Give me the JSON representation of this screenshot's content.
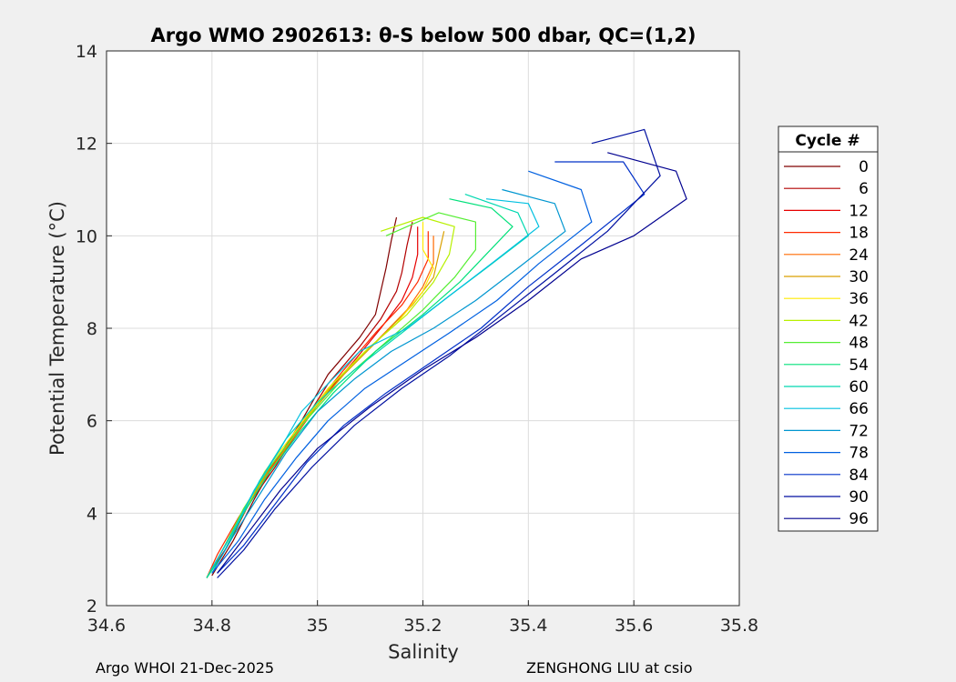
{
  "chart_data": {
    "type": "line",
    "title": "Argo WMO 2902613: θ-S below 500 dbar,  QC=(1,2)",
    "xlabel": "Salinity",
    "ylabel": "Potential Temperature (°C)",
    "xlim": [
      34.6,
      35.8
    ],
    "ylim": [
      2,
      14
    ],
    "xticks": [
      34.6,
      34.8,
      35,
      35.2,
      35.4,
      35.6,
      35.8
    ],
    "xtick_labels": [
      "34.6",
      "34.8",
      "35",
      "35.2",
      "35.4",
      "35.6",
      "35.8"
    ],
    "yticks": [
      2,
      4,
      6,
      8,
      10,
      12,
      14
    ],
    "ytick_labels": [
      "2",
      "4",
      "6",
      "8",
      "10",
      "12",
      "14"
    ],
    "grid": true,
    "legend": {
      "title": "Cycle #",
      "placement": "right-outside",
      "entries": [
        {
          "label": "0",
          "color": "#800000"
        },
        {
          "label": "6",
          "color": "#b30000"
        },
        {
          "label": "12",
          "color": "#e60000"
        },
        {
          "label": "18",
          "color": "#ff2a00"
        },
        {
          "label": "24",
          "color": "#ff6a00"
        },
        {
          "label": "30",
          "color": "#d9a000"
        },
        {
          "label": "36",
          "color": "#ffea00"
        },
        {
          "label": "42",
          "color": "#b8f000"
        },
        {
          "label": "48",
          "color": "#55ee33"
        },
        {
          "label": "54",
          "color": "#00e07a"
        },
        {
          "label": "60",
          "color": "#00d8b0"
        },
        {
          "label": "66",
          "color": "#00c0e0"
        },
        {
          "label": "72",
          "color": "#0096d0"
        },
        {
          "label": "78",
          "color": "#0060e0"
        },
        {
          "label": "84",
          "color": "#0030c8"
        },
        {
          "label": "90",
          "color": "#000fa0"
        },
        {
          "label": "96",
          "color": "#00008f"
        }
      ]
    },
    "series": [
      {
        "cycle": 0,
        "color": "#800000",
        "points": [
          [
            35.15,
            10.4
          ],
          [
            35.14,
            9.9
          ],
          [
            35.13,
            9.3
          ],
          [
            35.12,
            8.8
          ],
          [
            35.11,
            8.3
          ],
          [
            35.08,
            7.8
          ],
          [
            35.02,
            7.0
          ],
          [
            34.97,
            6.0
          ],
          [
            34.92,
            5.1
          ],
          [
            34.88,
            4.3
          ],
          [
            34.84,
            3.4
          ],
          [
            34.8,
            2.65
          ]
        ]
      },
      {
        "cycle": 6,
        "color": "#b30000",
        "points": [
          [
            35.18,
            10.3
          ],
          [
            35.17,
            9.8
          ],
          [
            35.16,
            9.2
          ],
          [
            35.15,
            8.8
          ],
          [
            35.12,
            8.2
          ],
          [
            35.08,
            7.6
          ],
          [
            35.02,
            6.8
          ],
          [
            34.97,
            5.9
          ],
          [
            34.92,
            5.0
          ],
          [
            34.87,
            4.2
          ],
          [
            34.83,
            3.3
          ],
          [
            34.79,
            2.6
          ]
        ]
      },
      {
        "cycle": 12,
        "color": "#e60000",
        "points": [
          [
            35.19,
            10.2
          ],
          [
            35.19,
            9.6
          ],
          [
            35.18,
            9.1
          ],
          [
            35.16,
            8.6
          ],
          [
            35.12,
            8.0
          ],
          [
            35.07,
            7.3
          ],
          [
            35.01,
            6.5
          ],
          [
            34.96,
            5.7
          ],
          [
            34.91,
            4.9
          ],
          [
            34.86,
            4.0
          ],
          [
            34.82,
            3.2
          ],
          [
            34.79,
            2.6
          ]
        ]
      },
      {
        "cycle": 18,
        "color": "#ff2a00",
        "points": [
          [
            35.21,
            10.1
          ],
          [
            35.21,
            9.5
          ],
          [
            35.19,
            9.0
          ],
          [
            35.16,
            8.5
          ],
          [
            35.11,
            7.9
          ],
          [
            35.05,
            7.1
          ],
          [
            35.0,
            6.4
          ],
          [
            34.95,
            5.6
          ],
          [
            34.9,
            4.8
          ],
          [
            34.85,
            3.9
          ],
          [
            34.81,
            3.1
          ],
          [
            34.79,
            2.6
          ]
        ]
      },
      {
        "cycle": 24,
        "color": "#ff6a00",
        "points": [
          [
            35.22,
            10.0
          ],
          [
            35.22,
            9.4
          ],
          [
            35.2,
            8.9
          ],
          [
            35.17,
            8.4
          ],
          [
            35.11,
            7.7
          ],
          [
            35.05,
            7.0
          ],
          [
            34.99,
            6.2
          ],
          [
            34.94,
            5.4
          ],
          [
            34.89,
            4.6
          ],
          [
            34.85,
            3.8
          ],
          [
            34.81,
            3.0
          ],
          [
            34.79,
            2.6
          ]
        ]
      },
      {
        "cycle": 30,
        "color": "#d9a000",
        "points": [
          [
            35.24,
            10.1
          ],
          [
            35.23,
            9.6
          ],
          [
            35.22,
            9.1
          ],
          [
            35.18,
            8.5
          ],
          [
            35.12,
            7.8
          ],
          [
            35.05,
            7.0
          ],
          [
            34.99,
            6.2
          ],
          [
            34.94,
            5.4
          ],
          [
            34.89,
            4.6
          ],
          [
            34.85,
            3.8
          ],
          [
            34.81,
            3.0
          ],
          [
            34.79,
            2.6
          ]
        ]
      },
      {
        "cycle": 36,
        "color": "#ffea00",
        "points": [
          [
            35.2,
            10.3
          ],
          [
            35.2,
            9.7
          ],
          [
            35.22,
            9.3
          ],
          [
            35.2,
            8.8
          ],
          [
            35.15,
            8.1
          ],
          [
            35.09,
            7.5
          ],
          [
            35.02,
            6.7
          ],
          [
            34.96,
            5.8
          ],
          [
            34.9,
            4.9
          ],
          [
            34.86,
            4.0
          ],
          [
            34.82,
            3.2
          ],
          [
            34.79,
            2.6
          ]
        ]
      },
      {
        "cycle": 42,
        "color": "#b8f000",
        "points": [
          [
            35.12,
            10.1
          ],
          [
            35.2,
            10.4
          ],
          [
            35.26,
            10.2
          ],
          [
            35.25,
            9.6
          ],
          [
            35.22,
            9.0
          ],
          [
            35.17,
            8.3
          ],
          [
            35.1,
            7.6
          ],
          [
            35.03,
            6.8
          ],
          [
            34.97,
            5.9
          ],
          [
            34.91,
            5.0
          ],
          [
            34.86,
            4.1
          ],
          [
            34.82,
            3.2
          ],
          [
            34.79,
            2.6
          ]
        ]
      },
      {
        "cycle": 48,
        "color": "#55ee33",
        "points": [
          [
            35.13,
            10.0
          ],
          [
            35.23,
            10.5
          ],
          [
            35.3,
            10.3
          ],
          [
            35.3,
            9.7
          ],
          [
            35.26,
            9.1
          ],
          [
            35.2,
            8.4
          ],
          [
            35.12,
            7.6
          ],
          [
            35.04,
            6.8
          ],
          [
            34.97,
            5.9
          ],
          [
            34.91,
            5.0
          ],
          [
            34.86,
            4.1
          ],
          [
            34.82,
            3.2
          ],
          [
            34.79,
            2.6
          ]
        ]
      },
      {
        "cycle": 54,
        "color": "#00e07a",
        "points": [
          [
            35.25,
            10.8
          ],
          [
            35.33,
            10.6
          ],
          [
            35.37,
            10.2
          ],
          [
            35.32,
            9.6
          ],
          [
            35.27,
            9.0
          ],
          [
            35.2,
            8.3
          ],
          [
            35.11,
            7.5
          ],
          [
            35.03,
            6.6
          ],
          [
            34.97,
            5.8
          ],
          [
            34.91,
            4.9
          ],
          [
            34.86,
            4.0
          ],
          [
            34.82,
            3.1
          ],
          [
            34.79,
            2.6
          ]
        ]
      },
      {
        "cycle": 60,
        "color": "#00d8b0",
        "points": [
          [
            35.28,
            10.9
          ],
          [
            35.38,
            10.5
          ],
          [
            35.4,
            10.0
          ],
          [
            35.32,
            9.3
          ],
          [
            35.25,
            8.7
          ],
          [
            35.16,
            7.9
          ],
          [
            35.07,
            7.1
          ],
          [
            35.0,
            6.4
          ],
          [
            34.94,
            5.6
          ],
          [
            34.89,
            4.7
          ],
          [
            34.85,
            3.8
          ],
          [
            34.81,
            3.0
          ],
          [
            34.79,
            2.6
          ]
        ]
      },
      {
        "cycle": 66,
        "color": "#00c0e0",
        "points": [
          [
            35.32,
            10.8
          ],
          [
            35.4,
            10.7
          ],
          [
            35.42,
            10.2
          ],
          [
            35.33,
            9.4
          ],
          [
            35.25,
            8.7
          ],
          [
            35.17,
            8.0
          ],
          [
            35.08,
            7.5
          ],
          [
            35.02,
            6.8
          ],
          [
            34.97,
            6.2
          ],
          [
            34.93,
            5.4
          ],
          [
            34.88,
            4.5
          ],
          [
            34.84,
            3.6
          ],
          [
            34.8,
            2.8
          ]
        ]
      },
      {
        "cycle": 72,
        "color": "#0096d0",
        "points": [
          [
            35.35,
            11.0
          ],
          [
            35.45,
            10.7
          ],
          [
            35.47,
            10.1
          ],
          [
            35.38,
            9.3
          ],
          [
            35.3,
            8.6
          ],
          [
            35.22,
            8.0
          ],
          [
            35.14,
            7.5
          ],
          [
            35.07,
            6.9
          ],
          [
            35.0,
            6.2
          ],
          [
            34.94,
            5.3
          ],
          [
            34.89,
            4.4
          ],
          [
            34.84,
            3.5
          ],
          [
            34.8,
            2.7
          ]
        ]
      },
      {
        "cycle": 78,
        "color": "#0060e0",
        "points": [
          [
            35.4,
            11.4
          ],
          [
            35.5,
            11.0
          ],
          [
            35.52,
            10.3
          ],
          [
            35.42,
            9.4
          ],
          [
            35.34,
            8.6
          ],
          [
            35.25,
            7.9
          ],
          [
            35.17,
            7.3
          ],
          [
            35.09,
            6.7
          ],
          [
            35.02,
            6.0
          ],
          [
            34.96,
            5.2
          ],
          [
            34.9,
            4.3
          ],
          [
            34.85,
            3.4
          ],
          [
            34.8,
            2.7
          ]
        ]
      },
      {
        "cycle": 84,
        "color": "#0030c8",
        "points": [
          [
            35.45,
            11.6
          ],
          [
            35.58,
            11.6
          ],
          [
            35.62,
            10.9
          ],
          [
            35.5,
            9.8
          ],
          [
            35.4,
            8.9
          ],
          [
            35.31,
            8.0
          ],
          [
            35.22,
            7.3
          ],
          [
            35.13,
            6.6
          ],
          [
            35.05,
            5.9
          ],
          [
            34.98,
            5.1
          ],
          [
            34.92,
            4.2
          ],
          [
            34.86,
            3.3
          ],
          [
            34.81,
            2.7
          ]
        ]
      },
      {
        "cycle": 90,
        "color": "#000fa0",
        "points": [
          [
            35.52,
            12.0
          ],
          [
            35.62,
            12.3
          ],
          [
            35.65,
            11.3
          ],
          [
            35.55,
            10.1
          ],
          [
            35.44,
            9.1
          ],
          [
            35.34,
            8.2
          ],
          [
            35.25,
            7.4
          ],
          [
            35.16,
            6.7
          ],
          [
            35.07,
            5.9
          ],
          [
            34.99,
            5.0
          ],
          [
            34.92,
            4.1
          ],
          [
            34.86,
            3.2
          ],
          [
            34.81,
            2.6
          ]
        ]
      },
      {
        "cycle": 96,
        "color": "#00008f",
        "points": [
          [
            35.55,
            11.8
          ],
          [
            35.68,
            11.4
          ],
          [
            35.7,
            10.8
          ],
          [
            35.6,
            10.0
          ],
          [
            35.5,
            9.5
          ],
          [
            35.4,
            8.6
          ],
          [
            35.3,
            7.8
          ],
          [
            35.2,
            7.1
          ],
          [
            35.1,
            6.3
          ],
          [
            35.0,
            5.4
          ],
          [
            34.93,
            4.5
          ],
          [
            34.87,
            3.6
          ],
          [
            34.81,
            2.7
          ]
        ]
      }
    ]
  },
  "footer": {
    "left": "Argo WHOI 21-Dec-2025",
    "right": "ZENGHONG LIU at csio"
  }
}
